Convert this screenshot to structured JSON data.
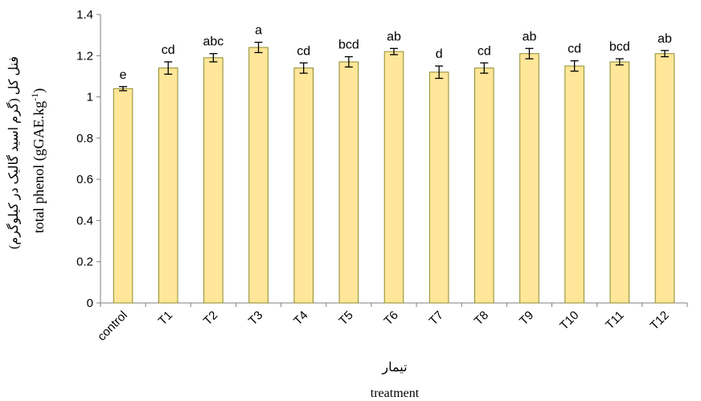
{
  "chart_data": {
    "type": "bar",
    "categories": [
      "control",
      "T1",
      "T2",
      "T3",
      "T4",
      "T5",
      "T6",
      "T7",
      "T8",
      "T9",
      "T10",
      "T11",
      "T12"
    ],
    "values": [
      1.04,
      1.14,
      1.19,
      1.24,
      1.14,
      1.17,
      1.22,
      1.12,
      1.14,
      1.21,
      1.15,
      1.17,
      1.21
    ],
    "errors": [
      0.01,
      0.03,
      0.02,
      0.025,
      0.025,
      0.025,
      0.015,
      0.03,
      0.025,
      0.025,
      0.025,
      0.015,
      0.015
    ],
    "letters": [
      "e",
      "cd",
      "abc",
      "a",
      "cd",
      "bcd",
      "ab",
      "d",
      "cd",
      "ab",
      "cd",
      "bcd",
      "ab"
    ],
    "ylim": [
      0,
      1.4
    ],
    "yticks": [
      "0",
      "0.2",
      "0.4",
      "0.6",
      "0.8",
      "1",
      "1.2",
      "1.4"
    ],
    "ylabel_fa": "فنل کل (گرم اسید گالیک در کیلوگرم)",
    "ylabel_en": "total phenol (gGAE.kg",
    "ylabel_en_sup": "-1",
    "ylabel_en_close": ")",
    "xlabel_fa": "تیمار",
    "xlabel_en": "treatment",
    "bar_color": "#FFE699",
    "bar_stroke": "#8C8C2A",
    "grid": false
  }
}
